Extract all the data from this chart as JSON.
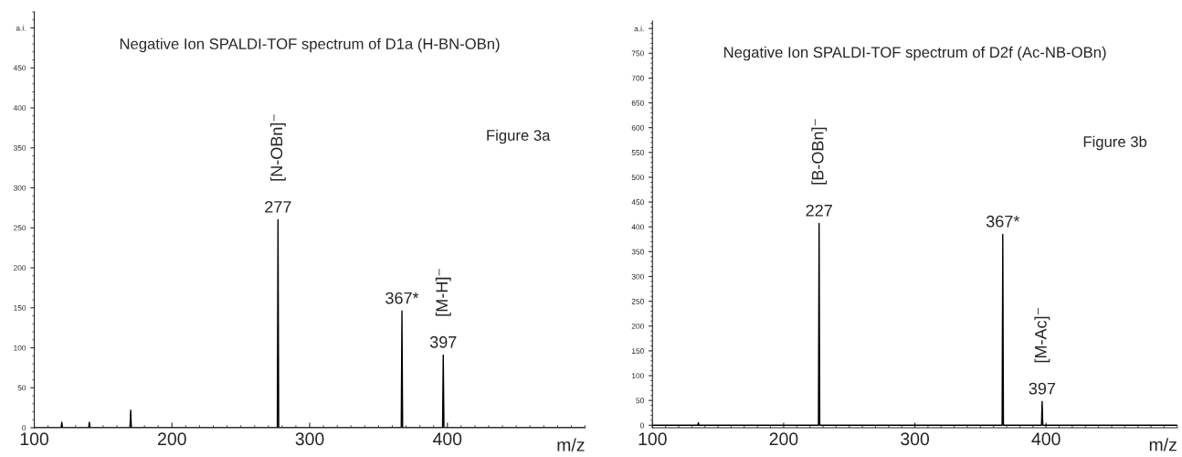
{
  "chart_data": [
    {
      "type": "line",
      "title": "Negative Ion SPALDI-TOF spectrum of D1a (H-BN-OBn)",
      "xlabel": "m/z",
      "series": [
        {
          "color": "#000000",
          "x": [
            100,
            119.5,
            120,
            120.5,
            139.5,
            140,
            140.5,
            169.5,
            170,
            170.5,
            276.5,
            277,
            277.5,
            366.5,
            367,
            367.5,
            396.5,
            397,
            397.5,
            500
          ],
          "values": [
            0,
            0,
            7,
            0,
            0,
            7,
            0,
            0,
            22,
            0,
            0,
            260,
            0,
            0,
            146,
            0,
            0,
            91,
            0,
            0
          ]
        }
      ],
      "xlim": [
        100,
        500
      ],
      "xticks": [
        100,
        200,
        300,
        400
      ],
      "ylim": [
        0,
        520
      ],
      "yticks": [
        0,
        50,
        100,
        150,
        200,
        250,
        300,
        350,
        400,
        450,
        {
          "value": 500,
          "label": "a.i."
        }
      ],
      "grid": false,
      "marker": "none",
      "line_style": "solid",
      "annotations": [
        {
          "text": "277",
          "x": 277,
          "y": 260
        },
        "[N-OBn]⁻",
        {
          "text": "367*",
          "x": 367,
          "y": 146
        },
        {
          "text": "397",
          "x": 397,
          "y": 91
        },
        "[M-H]⁻",
        "Figure 3a"
      ]
    },
    {
      "type": "line",
      "title": "Negative Ion SPALDI-TOF spectrum of D2f (Ac-NB-OBn)",
      "xlabel": "m/z",
      "series": [
        {
          "color": "#000000",
          "x": [
            100,
            134.5,
            135,
            135.5,
            226.5,
            227,
            227.5,
            366.5,
            367,
            367.5,
            396.5,
            397,
            397.5,
            500
          ],
          "values": [
            0,
            0,
            5,
            0,
            0,
            407,
            0,
            0,
            385,
            0,
            0,
            48,
            0,
            0
          ]
        }
      ],
      "xlim": [
        100,
        500
      ],
      "xticks": [
        100,
        200,
        300,
        400
      ],
      "ylim": [
        -5,
        815
      ],
      "yticks": [
        0,
        50,
        100,
        150,
        200,
        250,
        300,
        350,
        400,
        450,
        500,
        550,
        600,
        650,
        700,
        750,
        {
          "value": 800,
          "label": "a.i."
        }
      ],
      "grid": false,
      "marker": "none",
      "line_style": "solid",
      "annotations": [
        {
          "text": "227",
          "x": 227,
          "y": 407
        },
        "[B-OBn]⁻",
        {
          "text": "367*",
          "x": 367,
          "y": 385
        },
        {
          "text": "397",
          "x": 397,
          "y": 48
        },
        "[M-Ac]⁻",
        "Figure 3b"
      ]
    }
  ]
}
